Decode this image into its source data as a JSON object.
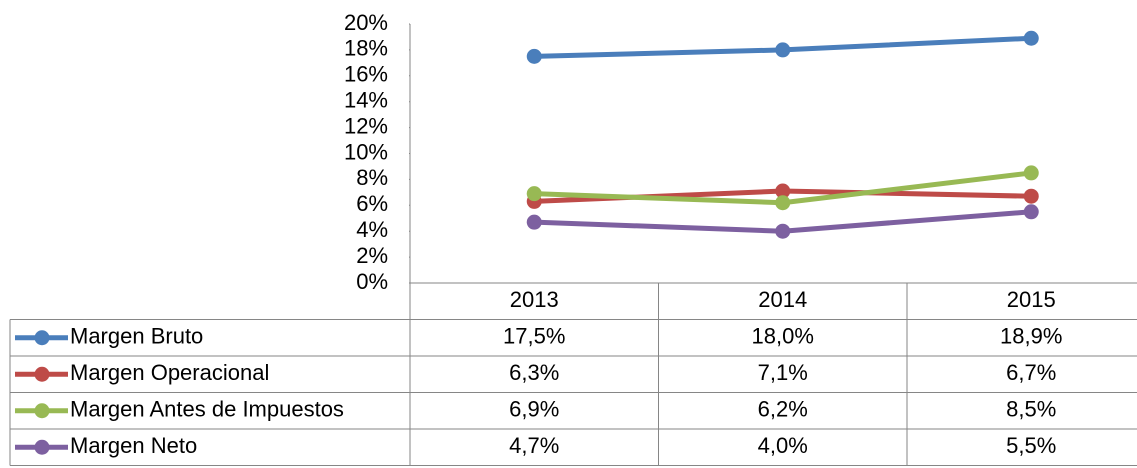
{
  "chart_data": {
    "type": "line",
    "categories": [
      "2013",
      "2014",
      "2015"
    ],
    "series": [
      {
        "name": "Margen Bruto",
        "color": "#4a7ebb",
        "values": [
          17.5,
          18.0,
          18.9
        ],
        "value_labels": [
          "17,5%",
          "18,0%",
          "18,9%"
        ]
      },
      {
        "name": "Margen Operacional",
        "color": "#be4b48",
        "values": [
          6.3,
          7.1,
          6.7
        ],
        "value_labels": [
          "6,3%",
          "7,1%",
          "6,7%"
        ]
      },
      {
        "name": "Margen Antes de Impuestos",
        "color": "#98b954",
        "values": [
          6.9,
          6.2,
          8.5
        ],
        "value_labels": [
          "6,9%",
          "6,2%",
          "8,5%"
        ]
      },
      {
        "name": "Margen Neto",
        "color": "#7d60a0",
        "values": [
          4.7,
          4.0,
          5.5
        ],
        "value_labels": [
          "4,7%",
          "4,0%",
          "5,5%"
        ]
      }
    ],
    "ylim": [
      0,
      20
    ],
    "yticks": [
      {
        "value": 0,
        "label": "0%"
      },
      {
        "value": 2,
        "label": "2%"
      },
      {
        "value": 4,
        "label": "4%"
      },
      {
        "value": 6,
        "label": "6%"
      },
      {
        "value": 8,
        "label": "8%"
      },
      {
        "value": 10,
        "label": "10%"
      },
      {
        "value": 12,
        "label": "12%"
      },
      {
        "value": 14,
        "label": "14%"
      },
      {
        "value": 16,
        "label": "16%"
      },
      {
        "value": 18,
        "label": "18%"
      },
      {
        "value": 20,
        "label": "20%"
      }
    ],
    "grid": false
  }
}
